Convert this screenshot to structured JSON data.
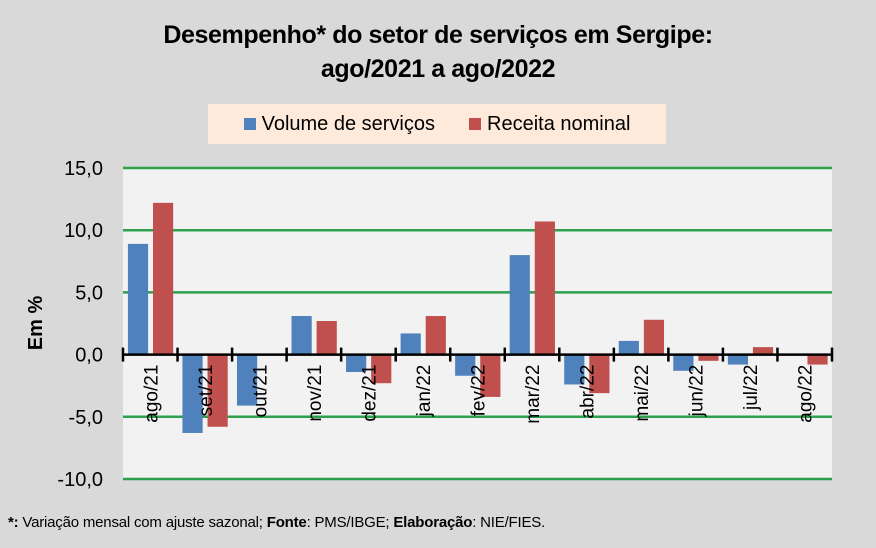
{
  "chart_data": {
    "type": "bar",
    "title": "Desempenho* do setor de serviços em Sergipe:",
    "subtitle": "ago/2021 a ago/2022",
    "xlabel": "",
    "ylabel": "Em %",
    "ylim": [
      -10,
      15
    ],
    "yticks": [
      15,
      10,
      5,
      0,
      -5,
      -10
    ],
    "ytick_labels": [
      "15,0",
      "10,0",
      "5,0",
      "0,0",
      "-5,0",
      "-10,0"
    ],
    "grid": true,
    "legend_position": "top",
    "categories": [
      "ago/21",
      "set/21",
      "out/21",
      "nov/21",
      "dez/21",
      "jan/22",
      "fev/22",
      "mar/22",
      "abr/22",
      "mai/22",
      "jun/22",
      "jul/22",
      "ago/22"
    ],
    "series": [
      {
        "name": "Volume de serviços",
        "color": "#4f81bd",
        "values": [
          8.9,
          -6.3,
          -4.1,
          3.1,
          -1.4,
          1.7,
          -1.7,
          8.0,
          -2.4,
          1.1,
          -1.3,
          -0.8,
          0.0
        ]
      },
      {
        "name": "Receita nominal",
        "color": "#c0504d",
        "values": [
          12.2,
          -5.8,
          0.0,
          2.7,
          -2.3,
          3.1,
          -3.4,
          10.7,
          -3.1,
          2.8,
          -0.5,
          0.6,
          -0.8
        ]
      }
    ]
  },
  "footnote": {
    "star_label": "*:",
    "star_text": " Variação mensal com ajuste sazonal; ",
    "source_label": "Fonte",
    "source_text": ": PMS/IBGE; ",
    "elab_label": "Elaboração",
    "elab_text": ": NIE/FIES."
  },
  "colors": {
    "background": "#d9d9d9",
    "plot_background": "#f2f2f2",
    "gridline": "#2ca04c",
    "legend_background": "#fdeada"
  }
}
